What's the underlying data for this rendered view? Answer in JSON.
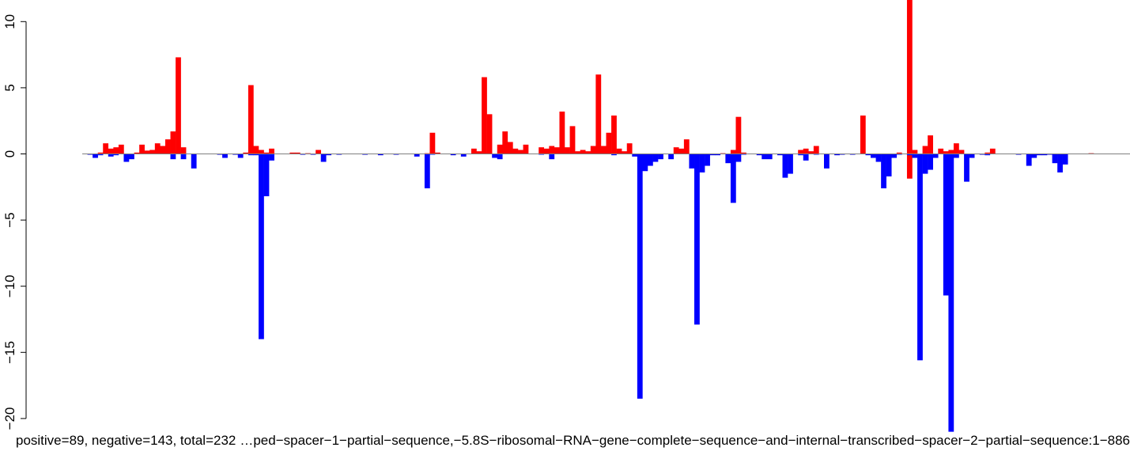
{
  "chart_data": {
    "type": "bar",
    "title": "",
    "xlabel": "",
    "ylabel": "",
    "ylim": [
      -21,
      11.5
    ],
    "yticks": [
      10,
      5,
      0,
      -5,
      -10,
      -15,
      -20
    ],
    "ytick_labels": [
      "10",
      "5",
      "0",
      "−5",
      "−10",
      "−15",
      "−20"
    ],
    "grid": false,
    "legend": "none",
    "x_range": [
      1,
      886
    ],
    "bin_count": 202,
    "baseline_color": "#808080",
    "bottom_labels": [
      "…ped−spacer−1−partial−sequence,−5.8S−ribosomal−RNA−gene−complete−sequence−and−internal−transcribed−spacer−2−partial−sequence:1−886",
      "positive=89, negative=143, total=232"
    ],
    "series": [
      {
        "name": "positive",
        "color": "#ff0000",
        "values": [
          [
            4,
            0.1
          ],
          [
            5,
            0.8
          ],
          [
            6,
            0.4
          ],
          [
            7,
            0.5
          ],
          [
            8,
            0.7
          ],
          [
            11,
            0.1
          ],
          [
            12,
            0.7
          ],
          [
            13,
            0.25
          ],
          [
            14,
            0.3
          ],
          [
            15,
            0.8
          ],
          [
            16,
            0.6
          ],
          [
            17,
            1.1
          ],
          [
            18,
            1.7
          ],
          [
            19,
            7.3
          ],
          [
            20,
            0.5
          ],
          [
            32,
            0.1
          ],
          [
            33,
            5.2
          ],
          [
            34,
            0.6
          ],
          [
            35,
            0.3
          ],
          [
            36,
            0.1
          ],
          [
            37,
            0.4
          ],
          [
            41,
            0.1
          ],
          [
            42,
            0.1
          ],
          [
            44,
            0.05
          ],
          [
            46,
            0.3
          ],
          [
            67,
            0.05
          ],
          [
            68,
            1.6
          ],
          [
            69,
            0.1
          ],
          [
            76,
            0.4
          ],
          [
            77,
            0.2
          ],
          [
            78,
            5.8
          ],
          [
            79,
            3.0
          ],
          [
            81,
            0.7
          ],
          [
            82,
            1.7
          ],
          [
            83,
            0.9
          ],
          [
            84,
            0.4
          ],
          [
            85,
            0.3
          ],
          [
            86,
            0.7
          ],
          [
            89,
            0.5
          ],
          [
            90,
            0.4
          ],
          [
            91,
            0.6
          ],
          [
            92,
            0.5
          ],
          [
            93,
            3.2
          ],
          [
            94,
            0.5
          ],
          [
            95,
            2.1
          ],
          [
            96,
            0.2
          ],
          [
            97,
            0.3
          ],
          [
            98,
            0.2
          ],
          [
            99,
            0.6
          ],
          [
            100,
            6.0
          ],
          [
            101,
            0.6
          ],
          [
            102,
            1.6
          ],
          [
            103,
            2.9
          ],
          [
            104,
            0.4
          ],
          [
            105,
            0.2
          ],
          [
            106,
            0.8
          ],
          [
            115,
            0.5
          ],
          [
            116,
            0.4
          ],
          [
            117,
            1.1
          ],
          [
            124,
            0.05
          ],
          [
            126,
            0.3
          ],
          [
            127,
            2.8
          ],
          [
            128,
            0.1
          ],
          [
            139,
            0.3
          ],
          [
            140,
            0.4
          ],
          [
            141,
            0.2
          ],
          [
            142,
            0.6
          ],
          [
            151,
            2.9
          ],
          [
            158,
            0.1
          ],
          [
            160,
            13.5
          ],
          [
            161,
            0.3
          ],
          [
            163,
            0.6
          ],
          [
            164,
            1.4
          ],
          [
            166,
            0.4
          ],
          [
            167,
            0.2
          ],
          [
            168,
            0.3
          ],
          [
            169,
            0.8
          ],
          [
            170,
            0.3
          ],
          [
            175,
            0.1
          ],
          [
            176,
            0.4
          ],
          [
            195,
            0.05
          ]
        ]
      },
      {
        "name": "negative",
        "color": "#0000ff",
        "values": [
          [
            2,
            -0.05
          ],
          [
            3,
            -0.3
          ],
          [
            4,
            -0.1
          ],
          [
            6,
            -0.2
          ],
          [
            7,
            -0.1
          ],
          [
            9,
            -0.6
          ],
          [
            10,
            -0.4
          ],
          [
            18,
            -0.4
          ],
          [
            20,
            -0.4
          ],
          [
            22,
            -1.1
          ],
          [
            27,
            -0.05
          ],
          [
            28,
            -0.3
          ],
          [
            30,
            -0.05
          ],
          [
            31,
            -0.3
          ],
          [
            33,
            -0.1
          ],
          [
            34,
            -0.1
          ],
          [
            35,
            -14.0
          ],
          [
            36,
            -3.2
          ],
          [
            37,
            -0.5
          ],
          [
            43,
            -0.05
          ],
          [
            45,
            -0.05
          ],
          [
            47,
            -0.6
          ],
          [
            48,
            -0.1
          ],
          [
            50,
            -0.05
          ],
          [
            55,
            -0.05
          ],
          [
            58,
            -0.1
          ],
          [
            61,
            -0.05
          ],
          [
            65,
            -0.2
          ],
          [
            67,
            -2.6
          ],
          [
            68,
            -0.05
          ],
          [
            72,
            -0.1
          ],
          [
            74,
            -0.2
          ],
          [
            80,
            -0.3
          ],
          [
            81,
            -0.4
          ],
          [
            89,
            -0.05
          ],
          [
            91,
            -0.4
          ],
          [
            103,
            -0.1
          ],
          [
            107,
            -0.2
          ],
          [
            108,
            -18.5
          ],
          [
            109,
            -1.3
          ],
          [
            110,
            -0.9
          ],
          [
            111,
            -0.6
          ],
          [
            112,
            -0.4
          ],
          [
            114,
            -0.4
          ],
          [
            118,
            -1.1
          ],
          [
            119,
            -12.9
          ],
          [
            120,
            -1.4
          ],
          [
            121,
            -0.9
          ],
          [
            122,
            -0.1
          ],
          [
            123,
            -0.1
          ],
          [
            125,
            -0.7
          ],
          [
            126,
            -3.7
          ],
          [
            127,
            -0.6
          ],
          [
            128,
            -0.05
          ],
          [
            131,
            -0.1
          ],
          [
            132,
            -0.4
          ],
          [
            133,
            -0.4
          ],
          [
            135,
            -0.1
          ],
          [
            136,
            -1.8
          ],
          [
            137,
            -1.5
          ],
          [
            139,
            -0.1
          ],
          [
            140,
            -0.5
          ],
          [
            142,
            -0.05
          ],
          [
            144,
            -1.1
          ],
          [
            146,
            -0.1
          ],
          [
            147,
            -0.05
          ],
          [
            149,
            -0.05
          ],
          [
            152,
            -0.1
          ],
          [
            153,
            -0.3
          ],
          [
            154,
            -0.6
          ],
          [
            155,
            -2.6
          ],
          [
            156,
            -1.7
          ],
          [
            157,
            -0.3
          ],
          [
            158,
            -0.05
          ],
          [
            160,
            -0.1
          ],
          [
            161,
            -0.3
          ],
          [
            162,
            -15.6
          ],
          [
            163,
            -1.5
          ],
          [
            164,
            -1.2
          ],
          [
            165,
            -0.3
          ],
          [
            167,
            -10.7
          ],
          [
            168,
            -21.0
          ],
          [
            169,
            -0.3
          ],
          [
            171,
            -2.1
          ],
          [
            172,
            -0.3
          ],
          [
            174,
            -0.05
          ],
          [
            175,
            -0.1
          ],
          [
            181,
            -0.05
          ],
          [
            183,
            -0.9
          ],
          [
            184,
            -0.3
          ],
          [
            185,
            -0.1
          ],
          [
            186,
            -0.1
          ],
          [
            187,
            -0.05
          ],
          [
            188,
            -0.7
          ],
          [
            189,
            -1.4
          ],
          [
            190,
            -0.8
          ]
        ]
      }
    ]
  }
}
